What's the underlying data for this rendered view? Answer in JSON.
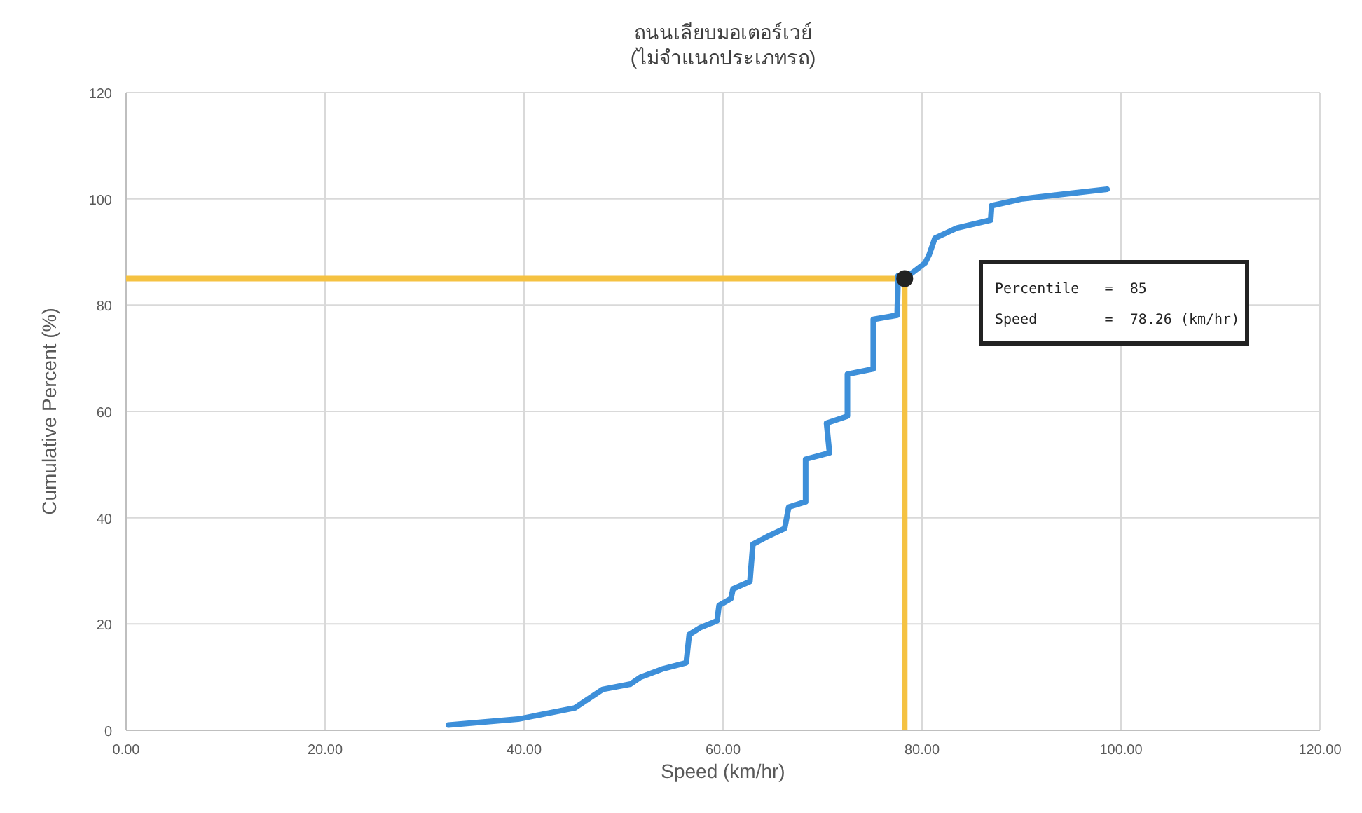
{
  "chart_data": {
    "type": "line",
    "title": "ถนนเลียบมอเตอร์เวย์",
    "subtitle": "(ไม่จำแนกประเภทรถ)",
    "xlabel": "Speed (km/hr)",
    "ylabel": "Cumulative Percent (%)",
    "xlim": [
      0,
      120
    ],
    "ylim": [
      0,
      120
    ],
    "xticks": [
      {
        "value": 0,
        "label": "0.00"
      },
      {
        "value": 20,
        "label": "20.00"
      },
      {
        "value": 40,
        "label": "40.00"
      },
      {
        "value": 60,
        "label": "60.00"
      },
      {
        "value": 80,
        "label": "80.00"
      },
      {
        "value": 100,
        "label": "100.00"
      },
      {
        "value": 120,
        "label": "120.00"
      }
    ],
    "yticks": [
      0,
      20,
      40,
      60,
      80,
      100,
      120
    ],
    "grid": true,
    "marker": "none",
    "line_style": "solid",
    "series": [
      {
        "color": "#3d8fd9",
        "x": [
          32.4,
          39.4,
          45.1,
          47.9,
          50.7,
          51.7,
          54,
          56.3,
          56.6,
          57.7,
          59.4,
          59.6,
          60.8,
          61,
          62.7,
          63,
          64.4,
          66.2,
          66.6,
          68.3,
          68.3,
          70.7,
          70.4,
          72.5,
          72.5,
          75.1,
          75.1,
          77.5,
          77.6,
          78.26,
          80.3,
          80.7,
          81.3,
          83.5,
          86.9,
          87,
          90.1,
          98.6
        ],
        "values": [
          1,
          2.1,
          4.2,
          7.7,
          8.7,
          10,
          11.6,
          12.7,
          18,
          19.3,
          20.6,
          23.5,
          24.8,
          26.6,
          28,
          35,
          36.4,
          38,
          42,
          43,
          51,
          52.2,
          57.8,
          59.1,
          67,
          68,
          77.3,
          78.1,
          85.5,
          85,
          87.9,
          89.4,
          92.6,
          94.5,
          96,
          98.7,
          100,
          101.8
        ]
      },
      {
        "type": "scatter",
        "color": "#222222",
        "marker": "circle",
        "x": [
          78.26
        ],
        "values": [
          85
        ]
      }
    ],
    "ref_lines": [
      {
        "axis": "x",
        "value": 78.26,
        "color": "#f5c242"
      },
      {
        "axis": "y",
        "value": 85,
        "color": "#f5c242"
      }
    ],
    "annotations": [
      "Percentile   =  85",
      "Speed        =  78.26 (km/hr)"
    ]
  }
}
